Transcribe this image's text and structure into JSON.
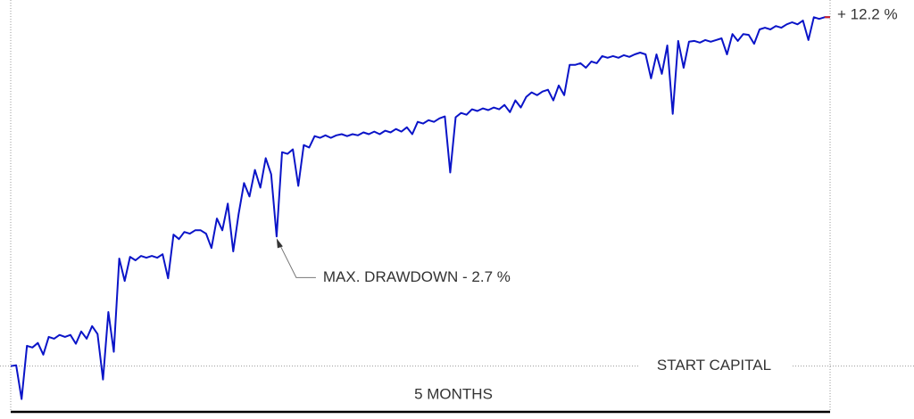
{
  "chart_data": {
    "type": "line",
    "values": [
      0,
      0.03,
      -1.15,
      0.71,
      0.65,
      0.81,
      0.4,
      1.02,
      0.96,
      1.09,
      1.02,
      1.09,
      0.78,
      1.21,
      0.96,
      1.4,
      1.12,
      -0.47,
      1.89,
      0.5,
      3.76,
      2.98,
      3.82,
      3.7,
      3.85,
      3.79,
      3.85,
      3.79,
      3.91,
      3.07,
      4.6,
      4.44,
      4.69,
      4.63,
      4.75,
      4.75,
      4.63,
      4.13,
      5.16,
      4.75,
      5.68,
      4.01,
      5.31,
      6.4,
      5.93,
      6.86,
      6.24,
      7.27,
      6.71,
      4.53,
      7.48,
      7.42,
      7.58,
      6.3,
      7.73,
      7.64,
      8.04,
      7.98,
      8.07,
      7.98,
      8.07,
      8.11,
      8.04,
      8.11,
      8.07,
      8.17,
      8.11,
      8.2,
      8.11,
      8.23,
      8.17,
      8.29,
      8.2,
      8.35,
      8.11,
      8.54,
      8.48,
      8.6,
      8.54,
      8.66,
      8.73,
      6.77,
      8.7,
      8.85,
      8.79,
      8.98,
      8.92,
      9.01,
      8.95,
      9.04,
      8.98,
      9.13,
      8.88,
      9.29,
      9.04,
      9.41,
      9.57,
      9.47,
      9.6,
      9.66,
      9.29,
      9.81,
      9.47,
      10.53,
      10.53,
      10.59,
      10.43,
      10.65,
      10.59,
      10.84,
      10.78,
      10.84,
      10.78,
      10.87,
      10.81,
      10.9,
      10.96,
      10.9,
      10.06,
      10.9,
      10.22,
      11.21,
      8.82,
      11.37,
      10.43,
      11.34,
      11.37,
      11.31,
      11.4,
      11.34,
      11.4,
      11.46,
      10.9,
      11.61,
      11.37,
      11.61,
      11.58,
      11.27,
      11.77,
      11.83,
      11.77,
      11.89,
      11.83,
      11.95,
      12.02,
      11.95,
      12.08,
      11.4,
      12.2,
      12.14,
      12.2,
      12.2
    ],
    "color": "#0a14c8",
    "end_color": "#d02020",
    "ylim": [
      -1.6,
      12.8
    ],
    "end_label": "+ 12.2 %",
    "drawdown_label": "MAX. DRAWDOWN - 2.7 %",
    "baseline_label": "START CAPITAL",
    "xlabel": "5 MONTHS"
  }
}
